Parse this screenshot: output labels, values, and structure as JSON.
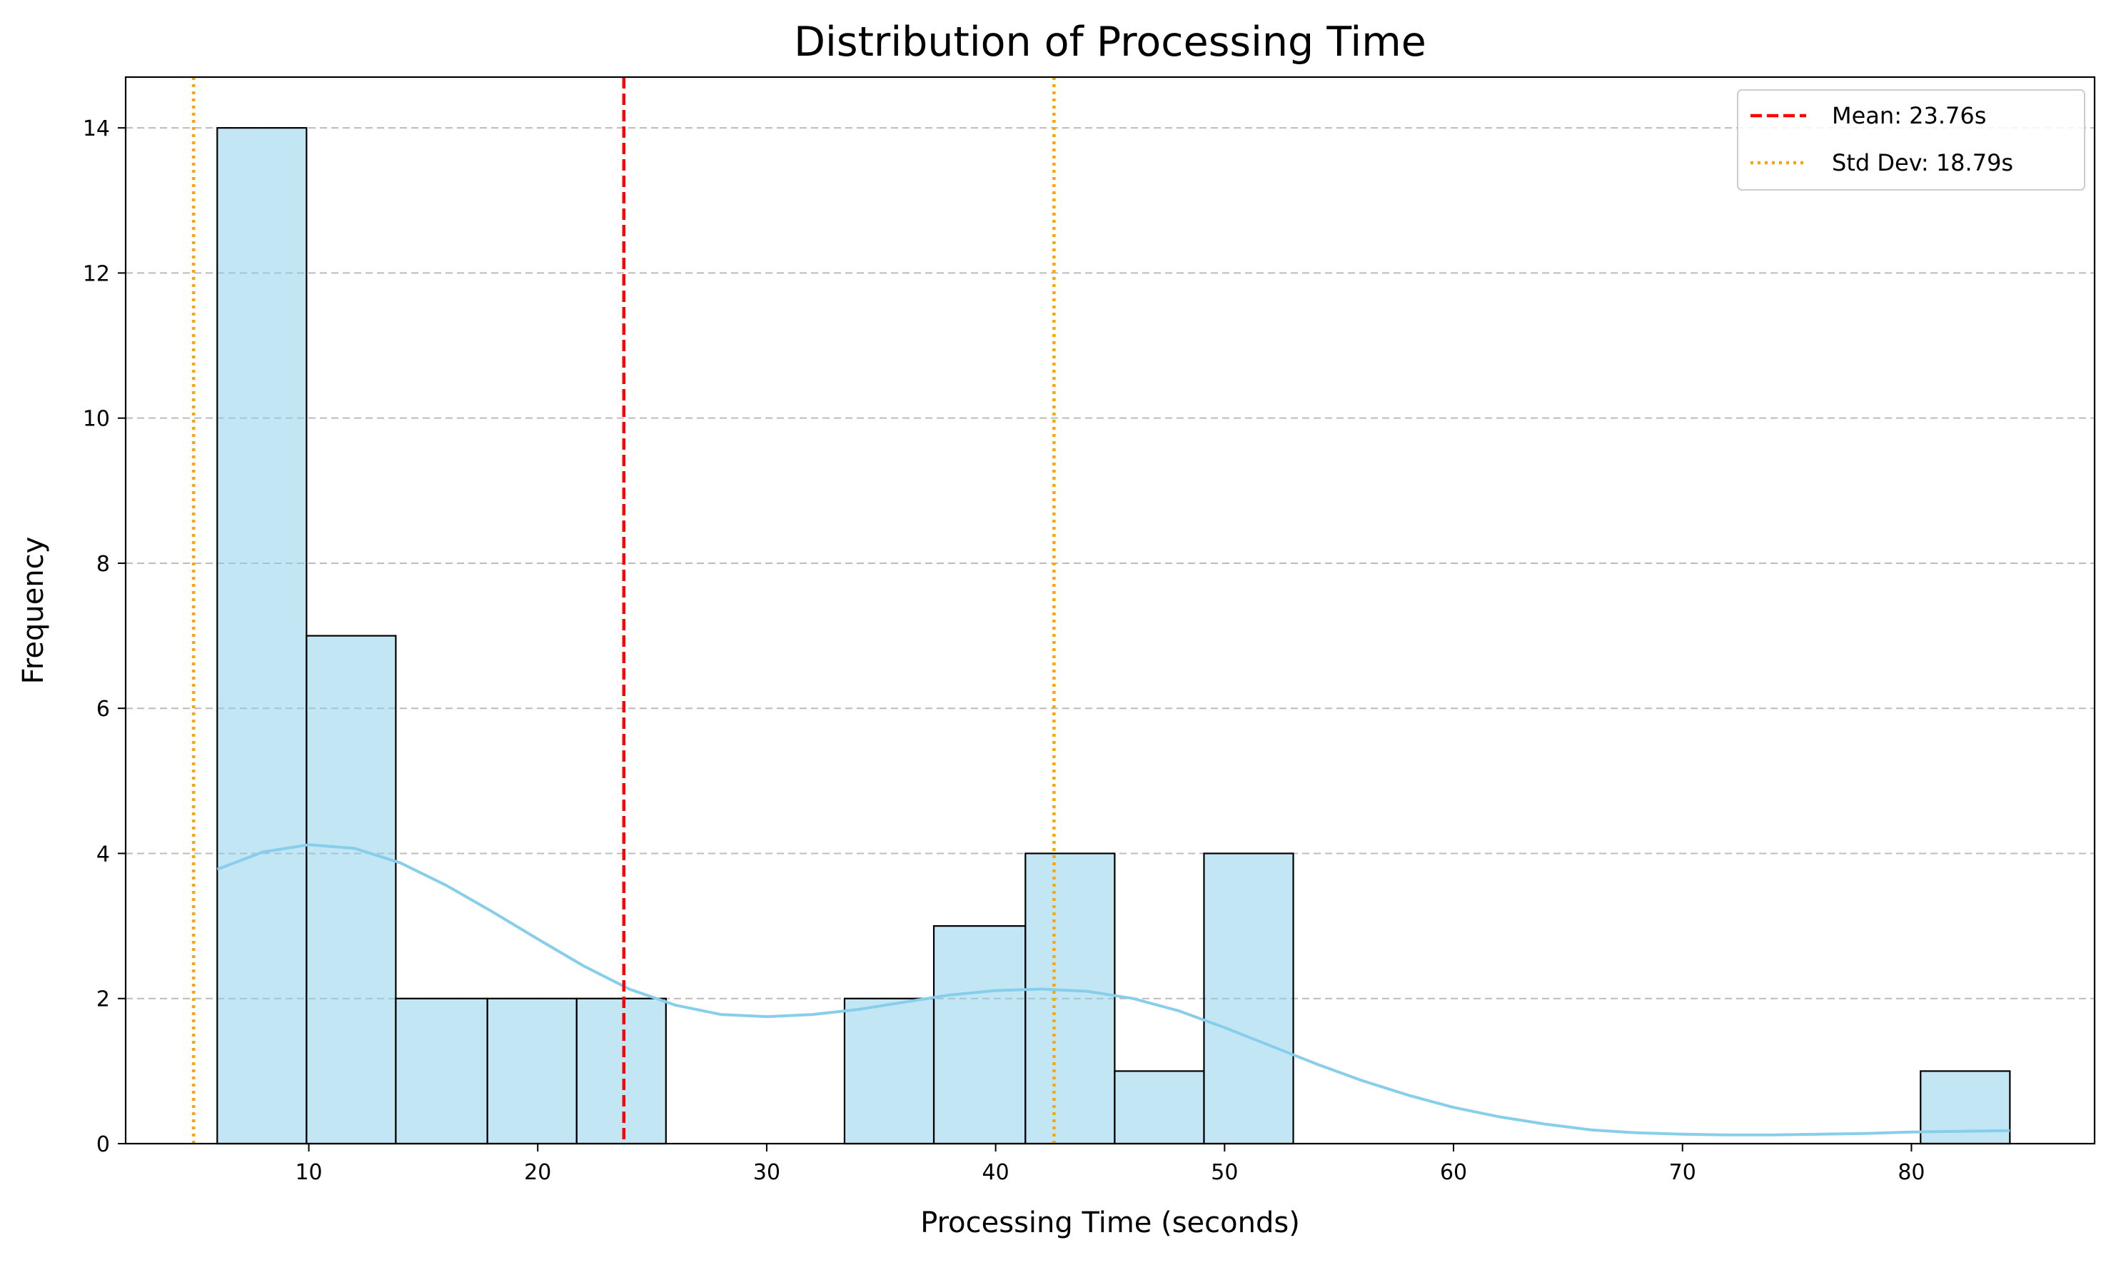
{
  "chart_data": {
    "type": "bar",
    "title": "Distribution of Processing Time",
    "xlabel": "Processing Time (seconds)",
    "ylabel": "Frequency",
    "xlim": [
      2.0,
      88.0
    ],
    "ylim": [
      0,
      14.7
    ],
    "x_ticks": [
      10,
      20,
      30,
      40,
      50,
      60,
      70,
      80
    ],
    "y_ticks": [
      0,
      2,
      4,
      6,
      8,
      10,
      12,
      14
    ],
    "grid": "y-axis dashed",
    "legend_position": "top-right",
    "bin_edges": [
      6.0,
      9.9,
      13.8,
      17.8,
      21.7,
      25.6,
      29.5,
      33.4,
      37.3,
      41.3,
      45.2,
      49.1,
      53.0,
      56.9,
      60.8,
      64.8,
      68.7,
      72.6,
      76.5,
      80.4,
      84.3
    ],
    "counts": [
      14,
      7,
      2,
      2,
      2,
      0,
      0,
      2,
      3,
      4,
      1,
      4,
      0,
      0,
      0,
      0,
      0,
      0,
      0,
      1
    ],
    "bar_color": "#87ceeb",
    "kde": {
      "color": "#87ceeb",
      "x": [
        6.0,
        8.0,
        10.0,
        12.0,
        14.0,
        16.0,
        18.0,
        20.0,
        22.0,
        24.0,
        26.0,
        28.0,
        30.0,
        32.0,
        34.0,
        36.0,
        38.0,
        40.0,
        42.0,
        44.0,
        46.0,
        48.0,
        50.0,
        52.0,
        54.0,
        56.0,
        58.0,
        60.0,
        62.0,
        64.0,
        66.0,
        68.0,
        70.0,
        72.0,
        74.0,
        76.0,
        78.0,
        80.0,
        82.0,
        84.3
      ],
      "y": [
        3.78,
        4.02,
        4.12,
        4.07,
        3.87,
        3.56,
        3.2,
        2.82,
        2.45,
        2.13,
        1.91,
        1.78,
        1.75,
        1.78,
        1.85,
        1.95,
        2.05,
        2.11,
        2.13,
        2.1,
        2.0,
        1.83,
        1.6,
        1.35,
        1.1,
        0.87,
        0.67,
        0.5,
        0.37,
        0.27,
        0.19,
        0.15,
        0.13,
        0.12,
        0.12,
        0.13,
        0.14,
        0.16,
        0.17,
        0.18
      ]
    },
    "reference_lines": [
      {
        "name": "Mean: 23.76s",
        "value": 23.76,
        "color": "#ff0000",
        "style": "dashed",
        "in_legend": true
      },
      {
        "name": "Std Dev: 18.79s",
        "value": 42.55,
        "color": "#ffa500",
        "style": "dotted",
        "in_legend": true
      },
      {
        "name": "",
        "value": 4.97,
        "color": "#ffa500",
        "style": "dotted",
        "in_legend": false
      }
    ]
  }
}
